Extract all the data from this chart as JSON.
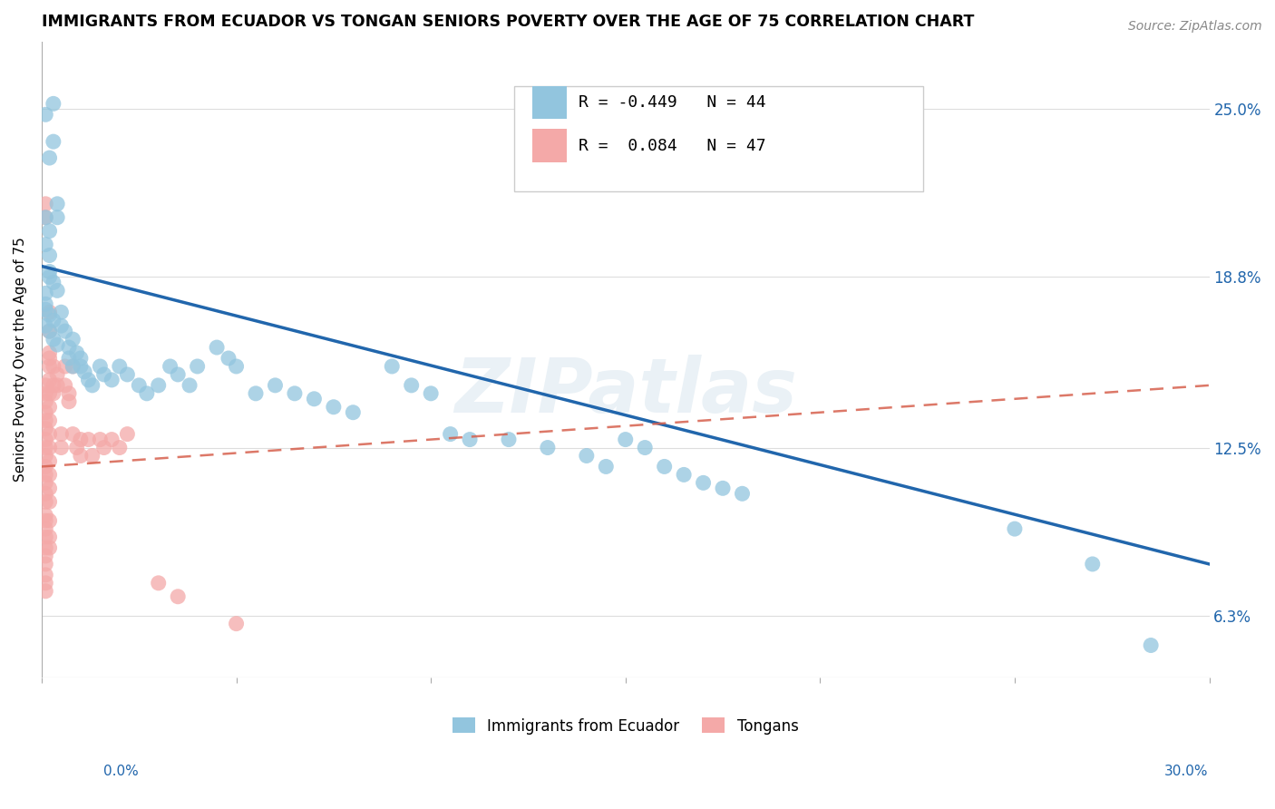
{
  "title": "IMMIGRANTS FROM ECUADOR VS TONGAN SENIORS POVERTY OVER THE AGE OF 75 CORRELATION CHART",
  "source": "Source: ZipAtlas.com",
  "ylabel": "Seniors Poverty Over the Age of 75",
  "ytick_labels": [
    "6.3%",
    "12.5%",
    "18.8%",
    "25.0%"
  ],
  "ytick_values": [
    0.063,
    0.125,
    0.188,
    0.25
  ],
  "xlim": [
    0.0,
    0.3
  ],
  "ylim": [
    0.04,
    0.275
  ],
  "color_ecuador": "#92c5de",
  "color_tongan": "#f4a9a8",
  "color_line_ecuador": "#2166ac",
  "color_line_tongan": "#d6604d",
  "watermark": "ZIPatlas",
  "ecuador_points": [
    [
      0.001,
      0.248
    ],
    [
      0.002,
      0.232
    ],
    [
      0.003,
      0.252
    ],
    [
      0.003,
      0.238
    ],
    [
      0.004,
      0.215
    ],
    [
      0.004,
      0.21
    ],
    [
      0.001,
      0.21
    ],
    [
      0.001,
      0.2
    ],
    [
      0.002,
      0.205
    ],
    [
      0.002,
      0.196
    ],
    [
      0.002,
      0.19
    ],
    [
      0.002,
      0.188
    ],
    [
      0.003,
      0.186
    ],
    [
      0.004,
      0.183
    ],
    [
      0.001,
      0.182
    ],
    [
      0.001,
      0.178
    ],
    [
      0.001,
      0.176
    ],
    [
      0.002,
      0.174
    ],
    [
      0.003,
      0.172
    ],
    [
      0.001,
      0.17
    ],
    [
      0.002,
      0.168
    ],
    [
      0.003,
      0.165
    ],
    [
      0.004,
      0.163
    ],
    [
      0.005,
      0.175
    ],
    [
      0.005,
      0.17
    ],
    [
      0.006,
      0.168
    ],
    [
      0.007,
      0.162
    ],
    [
      0.007,
      0.158
    ],
    [
      0.008,
      0.165
    ],
    [
      0.008,
      0.155
    ],
    [
      0.009,
      0.16
    ],
    [
      0.01,
      0.158
    ],
    [
      0.01,
      0.155
    ],
    [
      0.011,
      0.153
    ],
    [
      0.012,
      0.15
    ],
    [
      0.013,
      0.148
    ],
    [
      0.015,
      0.155
    ],
    [
      0.016,
      0.152
    ],
    [
      0.018,
      0.15
    ],
    [
      0.02,
      0.155
    ],
    [
      0.022,
      0.152
    ],
    [
      0.025,
      0.148
    ],
    [
      0.027,
      0.145
    ],
    [
      0.03,
      0.148
    ],
    [
      0.033,
      0.155
    ],
    [
      0.035,
      0.152
    ],
    [
      0.038,
      0.148
    ],
    [
      0.04,
      0.155
    ],
    [
      0.045,
      0.162
    ],
    [
      0.048,
      0.158
    ],
    [
      0.05,
      0.155
    ],
    [
      0.055,
      0.145
    ],
    [
      0.06,
      0.148
    ],
    [
      0.065,
      0.145
    ],
    [
      0.07,
      0.143
    ],
    [
      0.075,
      0.14
    ],
    [
      0.08,
      0.138
    ],
    [
      0.09,
      0.155
    ],
    [
      0.095,
      0.148
    ],
    [
      0.1,
      0.145
    ],
    [
      0.105,
      0.13
    ],
    [
      0.11,
      0.128
    ],
    [
      0.12,
      0.128
    ],
    [
      0.13,
      0.125
    ],
    [
      0.14,
      0.122
    ],
    [
      0.145,
      0.118
    ],
    [
      0.15,
      0.128
    ],
    [
      0.155,
      0.125
    ],
    [
      0.16,
      0.118
    ],
    [
      0.165,
      0.115
    ],
    [
      0.17,
      0.112
    ],
    [
      0.175,
      0.11
    ],
    [
      0.18,
      0.108
    ],
    [
      0.25,
      0.095
    ],
    [
      0.27,
      0.082
    ],
    [
      0.285,
      0.052
    ]
  ],
  "tongan_points": [
    [
      0.001,
      0.215
    ],
    [
      0.001,
      0.21
    ],
    [
      0.002,
      0.175
    ],
    [
      0.002,
      0.168
    ],
    [
      0.002,
      0.16
    ],
    [
      0.002,
      0.158
    ],
    [
      0.002,
      0.155
    ],
    [
      0.002,
      0.15
    ],
    [
      0.001,
      0.148
    ],
    [
      0.001,
      0.145
    ],
    [
      0.001,
      0.142
    ],
    [
      0.001,
      0.138
    ],
    [
      0.001,
      0.135
    ],
    [
      0.001,
      0.132
    ],
    [
      0.001,
      0.128
    ],
    [
      0.001,
      0.125
    ],
    [
      0.001,
      0.122
    ],
    [
      0.001,
      0.118
    ],
    [
      0.001,
      0.115
    ],
    [
      0.001,
      0.112
    ],
    [
      0.001,
      0.108
    ],
    [
      0.001,
      0.105
    ],
    [
      0.001,
      0.1
    ],
    [
      0.001,
      0.098
    ],
    [
      0.001,
      0.095
    ],
    [
      0.001,
      0.092
    ],
    [
      0.001,
      0.088
    ],
    [
      0.001,
      0.085
    ],
    [
      0.001,
      0.082
    ],
    [
      0.001,
      0.078
    ],
    [
      0.001,
      0.075
    ],
    [
      0.001,
      0.072
    ],
    [
      0.002,
      0.145
    ],
    [
      0.002,
      0.14
    ],
    [
      0.002,
      0.135
    ],
    [
      0.002,
      0.13
    ],
    [
      0.002,
      0.125
    ],
    [
      0.002,
      0.12
    ],
    [
      0.002,
      0.115
    ],
    [
      0.002,
      0.11
    ],
    [
      0.002,
      0.105
    ],
    [
      0.002,
      0.098
    ],
    [
      0.002,
      0.092
    ],
    [
      0.002,
      0.088
    ],
    [
      0.003,
      0.155
    ],
    [
      0.003,
      0.148
    ],
    [
      0.003,
      0.145
    ],
    [
      0.004,
      0.152
    ],
    [
      0.004,
      0.148
    ],
    [
      0.005,
      0.13
    ],
    [
      0.005,
      0.125
    ],
    [
      0.006,
      0.155
    ],
    [
      0.006,
      0.148
    ],
    [
      0.007,
      0.145
    ],
    [
      0.007,
      0.142
    ],
    [
      0.008,
      0.155
    ],
    [
      0.008,
      0.13
    ],
    [
      0.009,
      0.125
    ],
    [
      0.01,
      0.128
    ],
    [
      0.01,
      0.122
    ],
    [
      0.012,
      0.128
    ],
    [
      0.013,
      0.122
    ],
    [
      0.015,
      0.128
    ],
    [
      0.016,
      0.125
    ],
    [
      0.018,
      0.128
    ],
    [
      0.02,
      0.125
    ],
    [
      0.022,
      0.13
    ],
    [
      0.03,
      0.075
    ],
    [
      0.035,
      0.07
    ],
    [
      0.05,
      0.06
    ]
  ],
  "ecuador_trendline": {
    "x": [
      0.0,
      0.3
    ],
    "y": [
      0.192,
      0.082
    ]
  },
  "tongan_trendline": {
    "x": [
      0.0,
      0.3
    ],
    "y": [
      0.118,
      0.148
    ]
  }
}
